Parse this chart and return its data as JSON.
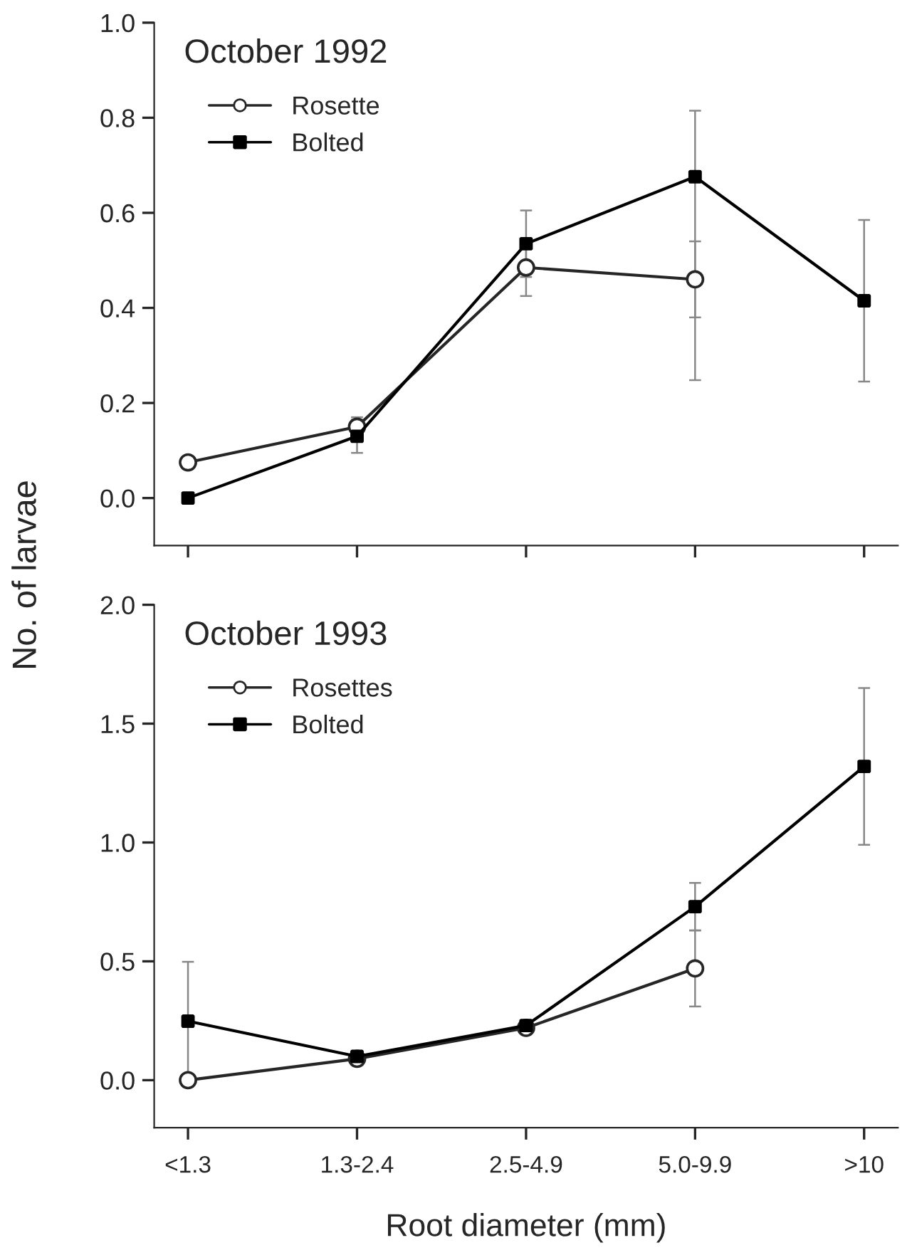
{
  "chart_data": [
    {
      "type": "line",
      "title": "October 1992",
      "ylabel": "No. of larvae",
      "categories": [
        null,
        null,
        null,
        null,
        null
      ],
      "ylim": [
        -0.1,
        1.0
      ],
      "yticks": [
        {
          "value": 0,
          "label": "0.0"
        },
        0.2,
        0.4,
        0.6,
        0.8,
        {
          "value": 1,
          "label": "1.0"
        }
      ],
      "legend": "top left",
      "grid": false,
      "series": [
        {
          "name": "Rosette",
          "color": "#262626",
          "marker": "circle",
          "values": [
            0.075,
            0.15,
            0.485,
            0.46,
            null
          ],
          "errors": [
            0.01,
            0.02,
            0.06,
            0.08,
            null
          ]
        },
        {
          "name": "Bolted",
          "color": "#000000",
          "marker": "square",
          "values": [
            0.0,
            0.13,
            0.535,
            0.676,
            0.415
          ],
          "errors": [
            null,
            0.035,
            0.07,
            [
              0.248,
              0.815
            ],
            0.17
          ]
        }
      ]
    },
    {
      "type": "line",
      "title": "October 1993",
      "xlabel": "Root diameter (mm)",
      "categories": [
        "<1.3",
        "1.3-2.4",
        "2.5-4.9",
        "5.0-9.9",
        ">10"
      ],
      "ylim": [
        -0.2,
        2.0
      ],
      "yticks": [
        {
          "value": 0,
          "label": "0.0"
        },
        0.5,
        {
          "value": 1,
          "label": "1.0"
        },
        1.5,
        {
          "value": 2,
          "label": "2.0"
        }
      ],
      "legend": "top left",
      "grid": false,
      "series": [
        {
          "name": "Rosettes",
          "color": "#262626",
          "marker": "circle",
          "values": [
            0.0,
            0.09,
            0.22,
            0.47,
            null
          ],
          "errors": [
            null,
            0.02,
            0.02,
            0.16,
            null
          ]
        },
        {
          "name": "Bolted",
          "color": "#000000",
          "marker": "square",
          "values": [
            0.248,
            0.1,
            0.23,
            0.73,
            1.32
          ],
          "errors": [
            0.25,
            0.02,
            0.02,
            0.1,
            0.33
          ]
        }
      ]
    }
  ]
}
